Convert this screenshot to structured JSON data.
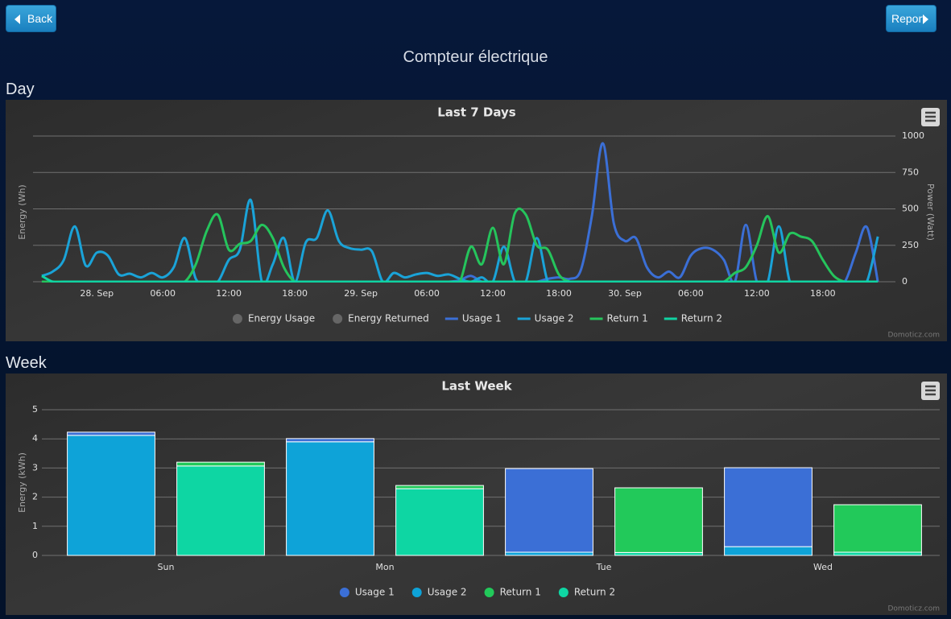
{
  "buttons": {
    "back": "Back",
    "report": "Report"
  },
  "title": "Compteur électrique",
  "sections": [
    "Day",
    "Week"
  ],
  "credit": "Domoticz.com",
  "chart_data": [
    {
      "type": "line",
      "title": "Last 7 Days",
      "ylabel": "Energy (Wh)",
      "y2label": "Power (Watt)",
      "xlim": [
        -5.8,
        72.6
      ],
      "xticks": [
        {
          "value": 0,
          "label": "28. Sep"
        },
        {
          "value": 6,
          "label": "06:00"
        },
        {
          "value": 12,
          "label": "12:00"
        },
        {
          "value": 18,
          "label": "18:00"
        },
        {
          "value": 24,
          "label": "29. Sep"
        },
        {
          "value": 30,
          "label": "06:00"
        },
        {
          "value": 36,
          "label": "12:00"
        },
        {
          "value": 42,
          "label": "18:00"
        },
        {
          "value": 48,
          "label": "30. Sep"
        },
        {
          "value": 54,
          "label": "06:00"
        },
        {
          "value": 60,
          "label": "12:00"
        },
        {
          "value": 66,
          "label": "18:00"
        }
      ],
      "y2lim": [
        0,
        1000
      ],
      "y2ticks": [
        0,
        250,
        500,
        750,
        1000
      ],
      "grid": true,
      "hidden_series": [
        "Energy Usage",
        "Energy Returned"
      ],
      "x": [
        -5,
        -4,
        -3,
        -2,
        -1,
        0,
        1,
        2,
        3,
        4,
        5,
        6,
        7,
        8,
        9,
        10,
        11,
        12,
        13,
        14,
        15,
        16,
        17,
        18,
        19,
        20,
        21,
        22,
        23,
        24,
        25,
        26,
        27,
        28,
        29,
        30,
        31,
        32,
        33,
        34,
        35,
        36,
        37,
        38,
        39,
        40,
        41,
        42,
        43,
        44,
        45,
        46,
        47,
        48,
        49,
        50,
        51,
        52,
        53,
        54,
        55,
        56,
        57,
        58,
        59,
        60,
        61,
        62,
        63,
        64,
        65,
        66,
        67,
        68,
        69,
        70,
        71
      ],
      "series": [
        {
          "name": "Usage 1",
          "color": "#3b6fd6",
          "axis": "y2",
          "values": [
            0,
            0,
            0,
            0,
            0,
            0,
            0,
            0,
            0,
            0,
            0,
            0,
            0,
            0,
            0,
            0,
            0,
            0,
            0,
            0,
            0,
            0,
            0,
            0,
            0,
            0,
            0,
            0,
            0,
            0,
            0,
            0,
            0,
            0,
            0,
            0,
            0,
            0,
            10,
            40,
            0,
            0,
            0,
            0,
            0,
            0,
            20,
            30,
            20,
            80,
            450,
            950,
            400,
            280,
            300,
            100,
            30,
            70,
            30,
            180,
            230,
            220,
            150,
            0,
            390,
            0,
            0,
            0,
            0,
            0,
            0,
            0,
            0,
            0,
            200,
            375,
            0
          ]
        },
        {
          "name": "Usage 2",
          "color": "#1aa3d8",
          "axis": "y2",
          "values": [
            40,
            70,
            150,
            380,
            110,
            200,
            180,
            50,
            55,
            30,
            60,
            30,
            100,
            300,
            20,
            0,
            0,
            150,
            220,
            560,
            0,
            120,
            300,
            0,
            270,
            300,
            490,
            280,
            230,
            220,
            210,
            0,
            60,
            30,
            50,
            60,
            40,
            50,
            20,
            0,
            30,
            0,
            240,
            0,
            0,
            300,
            0,
            0,
            0,
            0,
            0,
            0,
            0,
            0,
            0,
            0,
            0,
            0,
            0,
            0,
            0,
            0,
            0,
            0,
            0,
            0,
            0,
            380,
            0,
            0,
            0,
            0,
            0,
            0,
            0,
            0,
            310
          ]
        },
        {
          "name": "Return 1",
          "color": "#25c45c",
          "axis": "y2",
          "values": [
            0,
            0,
            0,
            0,
            0,
            0,
            0,
            0,
            0,
            0,
            0,
            0,
            0,
            0,
            120,
            350,
            460,
            220,
            260,
            280,
            390,
            300,
            100,
            0,
            0,
            0,
            0,
            0,
            0,
            0,
            0,
            0,
            0,
            0,
            0,
            0,
            0,
            0,
            0,
            240,
            120,
            370,
            120,
            470,
            460,
            250,
            220,
            50,
            0,
            0,
            0,
            0,
            0,
            0,
            0,
            0,
            0,
            0,
            0,
            0,
            0,
            0,
            0,
            60,
            100,
            250,
            450,
            200,
            330,
            310,
            280,
            150,
            40,
            0,
            0,
            0,
            0
          ]
        },
        {
          "name": "Return 2",
          "color": "#10d3a2",
          "axis": "y2",
          "values": [
            40,
            0,
            0,
            0,
            0,
            0,
            0,
            0,
            0,
            0,
            0,
            0,
            0,
            0,
            0,
            0,
            0,
            0,
            0,
            0,
            0,
            0,
            0,
            0,
            0,
            0,
            0,
            0,
            0,
            0,
            0,
            0,
            0,
            0,
            0,
            0,
            0,
            0,
            0,
            0,
            0,
            0,
            0,
            0,
            0,
            0,
            0,
            0,
            0,
            0,
            0,
            0,
            0,
            0,
            0,
            0,
            0,
            0,
            0,
            0,
            0,
            0,
            0,
            0,
            0,
            0,
            0,
            0,
            0,
            0,
            0,
            0,
            0,
            0,
            0,
            0,
            0
          ]
        }
      ]
    },
    {
      "type": "bar",
      "title": "Last Week",
      "ylabel": "Energy (kWh)",
      "categories": [
        "Sun",
        "Mon",
        "Tue",
        "Wed"
      ],
      "ylim": [
        0,
        5
      ],
      "yticks": [
        0,
        1,
        2,
        3,
        4,
        5
      ],
      "grid": true,
      "series": [
        {
          "name": "Usage 1",
          "color": "#3b6fd6",
          "stack": 0,
          "values": [
            0.11,
            0.11,
            2.87,
            2.71
          ]
        },
        {
          "name": "Usage 2",
          "color": "#0ea3d8",
          "stack": 0,
          "values": [
            4.12,
            3.9,
            0.11,
            0.3
          ]
        },
        {
          "name": "Return 1",
          "color": "#22c95a",
          "stack": 1,
          "values": [
            0.13,
            0.11,
            2.22,
            1.63
          ]
        },
        {
          "name": "Return 2",
          "color": "#0ed6a3",
          "stack": 1,
          "values": [
            3.07,
            2.29,
            0.1,
            0.11
          ]
        }
      ]
    }
  ]
}
